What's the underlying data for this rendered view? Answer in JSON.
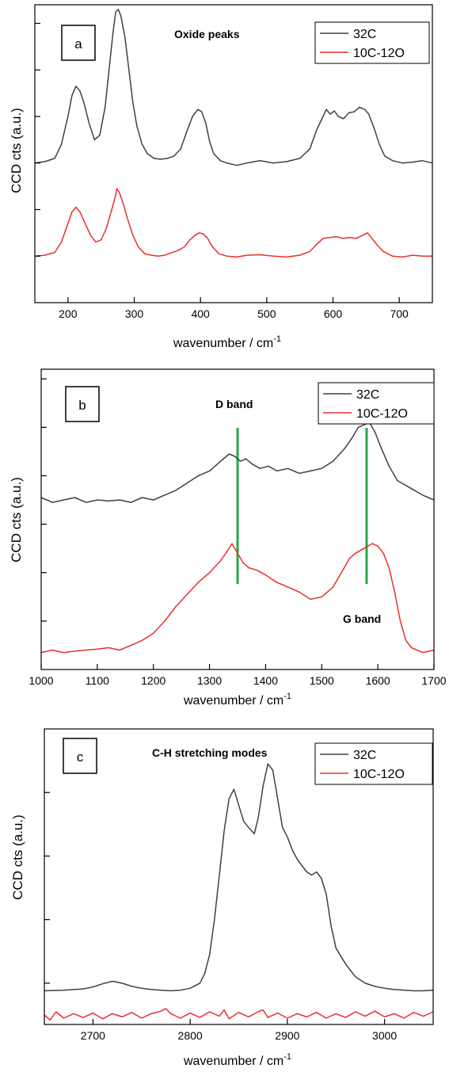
{
  "chart_data": [
    {
      "type": "line",
      "panel_label": "a",
      "annotation": "Oxide peaks",
      "xlabel": "wavenumber / cm",
      "xlabel_sup": "-1",
      "ylabel": "CCD cts (a.u.)",
      "xlim": [
        150,
        750
      ],
      "ylim": [
        0,
        6.4
      ],
      "xticks": [
        200,
        300,
        400,
        500,
        600,
        700
      ],
      "yticks_unlabeled": [
        1,
        2,
        3,
        4,
        5,
        6
      ],
      "legend": "top-right",
      "series": [
        {
          "name": "32C",
          "color": "#404040",
          "x": [
            150,
            165,
            180,
            190,
            200,
            206,
            212,
            218,
            224,
            232,
            240,
            248,
            256,
            262,
            268,
            272,
            276,
            280,
            286,
            292,
            298,
            304,
            312,
            320,
            330,
            340,
            350,
            360,
            370,
            380,
            388,
            396,
            402,
            408,
            414,
            420,
            430,
            440,
            455,
            470,
            490,
            510,
            530,
            550,
            565,
            575,
            585,
            590,
            596,
            602,
            608,
            616,
            624,
            632,
            640,
            648,
            654,
            662,
            670,
            678,
            690,
            705,
            720,
            735,
            750
          ],
          "y": [
            3.0,
            3.03,
            3.1,
            3.4,
            4.0,
            4.45,
            4.65,
            4.55,
            4.3,
            3.85,
            3.5,
            3.6,
            4.2,
            5.0,
            5.8,
            6.25,
            6.3,
            6.15,
            5.7,
            5.0,
            4.3,
            3.8,
            3.4,
            3.2,
            3.1,
            3.08,
            3.1,
            3.15,
            3.3,
            3.7,
            4.0,
            4.15,
            4.1,
            3.85,
            3.45,
            3.2,
            3.05,
            3.0,
            2.95,
            3.0,
            3.05,
            3.0,
            3.03,
            3.1,
            3.3,
            3.7,
            4.0,
            4.15,
            4.05,
            4.12,
            4.0,
            3.95,
            4.08,
            4.1,
            4.2,
            4.15,
            4.05,
            3.75,
            3.4,
            3.15,
            3.05,
            3.0,
            3.02,
            3.05,
            3.0
          ]
        },
        {
          "name": "10C-12O",
          "color": "#e8302a",
          "x": [
            150,
            165,
            180,
            190,
            200,
            206,
            212,
            218,
            226,
            234,
            242,
            250,
            258,
            264,
            270,
            274,
            278,
            284,
            290,
            298,
            306,
            316,
            326,
            336,
            346,
            356,
            366,
            376,
            384,
            392,
            398,
            404,
            410,
            418,
            428,
            440,
            455,
            470,
            490,
            510,
            530,
            550,
            565,
            575,
            585,
            595,
            605,
            615,
            625,
            635,
            645,
            652,
            658,
            666,
            676,
            690,
            705,
            720,
            735,
            750
          ],
          "y": [
            1.0,
            1.02,
            1.08,
            1.3,
            1.7,
            1.95,
            2.05,
            1.95,
            1.7,
            1.45,
            1.3,
            1.35,
            1.6,
            1.9,
            2.2,
            2.45,
            2.35,
            2.1,
            1.8,
            1.45,
            1.2,
            1.05,
            1.02,
            1.0,
            1.02,
            1.07,
            1.12,
            1.2,
            1.35,
            1.45,
            1.5,
            1.48,
            1.4,
            1.2,
            1.05,
            1.0,
            0.98,
            1.02,
            1.03,
            1.0,
            0.98,
            1.02,
            1.1,
            1.25,
            1.38,
            1.4,
            1.42,
            1.38,
            1.4,
            1.38,
            1.45,
            1.5,
            1.4,
            1.25,
            1.1,
            1.0,
            0.98,
            1.02,
            1.0,
            1.0
          ]
        }
      ]
    },
    {
      "type": "line",
      "panel_label": "b",
      "annotations": [
        "D band",
        "G band"
      ],
      "marker_lines": [
        1350,
        1580
      ],
      "marker_color": "#22a84a",
      "xlabel": "wavenumber / cm",
      "xlabel_sup": "-1",
      "ylabel": "CCD cts (a.u.)",
      "xlim": [
        1000,
        1700
      ],
      "ylim": [
        0,
        6.2
      ],
      "xticks": [
        1000,
        1100,
        1200,
        1300,
        1400,
        1500,
        1600,
        1700
      ],
      "yticks_unlabeled": [
        1,
        2,
        3,
        4,
        5,
        6
      ],
      "legend": "top-right",
      "series": [
        {
          "name": "32C",
          "color": "#404040",
          "x": [
            1000,
            1020,
            1040,
            1060,
            1080,
            1100,
            1120,
            1140,
            1160,
            1180,
            1200,
            1220,
            1240,
            1260,
            1280,
            1300,
            1320,
            1335,
            1345,
            1355,
            1365,
            1375,
            1390,
            1405,
            1420,
            1440,
            1460,
            1480,
            1500,
            1520,
            1540,
            1555,
            1565,
            1575,
            1585,
            1595,
            1605,
            1620,
            1635,
            1650,
            1665,
            1680,
            1700
          ],
          "y": [
            3.55,
            3.45,
            3.5,
            3.55,
            3.45,
            3.5,
            3.48,
            3.5,
            3.45,
            3.55,
            3.5,
            3.6,
            3.7,
            3.85,
            4.0,
            4.1,
            4.3,
            4.45,
            4.4,
            4.3,
            4.35,
            4.25,
            4.15,
            4.2,
            4.1,
            4.15,
            4.05,
            4.1,
            4.15,
            4.3,
            4.55,
            4.8,
            5.0,
            5.05,
            5.1,
            4.9,
            4.6,
            4.2,
            3.9,
            3.8,
            3.7,
            3.6,
            3.5
          ]
        },
        {
          "name": "10C-12O",
          "color": "#e8302a",
          "x": [
            1000,
            1020,
            1040,
            1060,
            1080,
            1100,
            1120,
            1140,
            1160,
            1180,
            1200,
            1220,
            1240,
            1260,
            1280,
            1300,
            1320,
            1335,
            1340,
            1350,
            1360,
            1370,
            1385,
            1400,
            1420,
            1440,
            1460,
            1480,
            1500,
            1520,
            1540,
            1550,
            1560,
            1575,
            1590,
            1600,
            1610,
            1620,
            1630,
            1640,
            1650,
            1660,
            1680,
            1700
          ],
          "y": [
            0.35,
            0.4,
            0.35,
            0.38,
            0.4,
            0.42,
            0.45,
            0.4,
            0.5,
            0.6,
            0.75,
            1.0,
            1.3,
            1.55,
            1.8,
            2.0,
            2.25,
            2.5,
            2.6,
            2.4,
            2.2,
            2.1,
            2.05,
            1.95,
            1.8,
            1.7,
            1.6,
            1.45,
            1.5,
            1.7,
            2.1,
            2.3,
            2.4,
            2.5,
            2.6,
            2.55,
            2.4,
            2.1,
            1.6,
            1.0,
            0.6,
            0.45,
            0.35,
            0.4
          ]
        }
      ]
    },
    {
      "type": "line",
      "panel_label": "c",
      "annotation": "C-H stretching modes",
      "xlabel": "wavenumber / cm",
      "xlabel_sup": "-1",
      "ylabel": "CCD cts (a.u.)",
      "xlim": [
        2650,
        3050
      ],
      "ylim": [
        -0.15,
        4.5
      ],
      "xticks": [
        2700,
        2800,
        2900,
        3000
      ],
      "yticks_unlabeled": [
        0.5,
        1.5,
        2.5,
        3.5
      ],
      "legend": "top-right",
      "series": [
        {
          "name": "32C",
          "color": "#404040",
          "x": [
            2650,
            2670,
            2690,
            2700,
            2710,
            2720,
            2730,
            2740,
            2750,
            2760,
            2770,
            2780,
            2790,
            2800,
            2810,
            2815,
            2820,
            2825,
            2830,
            2835,
            2840,
            2845,
            2850,
            2855,
            2860,
            2866,
            2870,
            2875,
            2880,
            2885,
            2890,
            2895,
            2900,
            2905,
            2910,
            2915,
            2920,
            2925,
            2930,
            2935,
            2940,
            2945,
            2950,
            2960,
            2970,
            2980,
            2990,
            3000,
            3010,
            3020,
            3030,
            3040,
            3050
          ],
          "y": [
            0.38,
            0.39,
            0.41,
            0.44,
            0.49,
            0.53,
            0.5,
            0.45,
            0.42,
            0.4,
            0.39,
            0.38,
            0.39,
            0.42,
            0.5,
            0.65,
            0.95,
            1.5,
            2.2,
            2.9,
            3.4,
            3.55,
            3.3,
            3.05,
            2.95,
            2.85,
            3.1,
            3.6,
            3.95,
            3.85,
            3.4,
            2.95,
            2.8,
            2.6,
            2.45,
            2.35,
            2.25,
            2.2,
            2.25,
            2.15,
            1.9,
            1.4,
            1.05,
            0.8,
            0.6,
            0.5,
            0.45,
            0.42,
            0.4,
            0.39,
            0.38,
            0.38,
            0.39
          ]
        },
        {
          "name": "10C-12O",
          "color": "#e8302a",
          "x": [
            2650,
            2656,
            2662,
            2670,
            2680,
            2690,
            2700,
            2710,
            2720,
            2730,
            2740,
            2750,
            2760,
            2770,
            2775,
            2780,
            2790,
            2800,
            2810,
            2820,
            2830,
            2835,
            2840,
            2850,
            2860,
            2870,
            2875,
            2880,
            2890,
            2900,
            2910,
            2920,
            2930,
            2940,
            2950,
            2960,
            2970,
            2980,
            2990,
            3000,
            3010,
            3020,
            3030,
            3040,
            3050
          ],
          "y": [
            0.0,
            -0.08,
            0.05,
            -0.05,
            0.02,
            -0.04,
            0.03,
            -0.06,
            0.02,
            -0.03,
            0.04,
            -0.05,
            0.02,
            0.06,
            0.1,
            0.02,
            -0.05,
            0.03,
            -0.04,
            0.05,
            -0.02,
            0.08,
            -0.06,
            0.04,
            -0.03,
            0.05,
            0.08,
            -0.04,
            0.03,
            -0.05,
            0.02,
            -0.03,
            0.04,
            -0.05,
            0.02,
            -0.04,
            0.05,
            -0.02,
            0.06,
            -0.03,
            0.02,
            -0.05,
            0.04,
            -0.02,
            0.05
          ]
        }
      ]
    }
  ]
}
